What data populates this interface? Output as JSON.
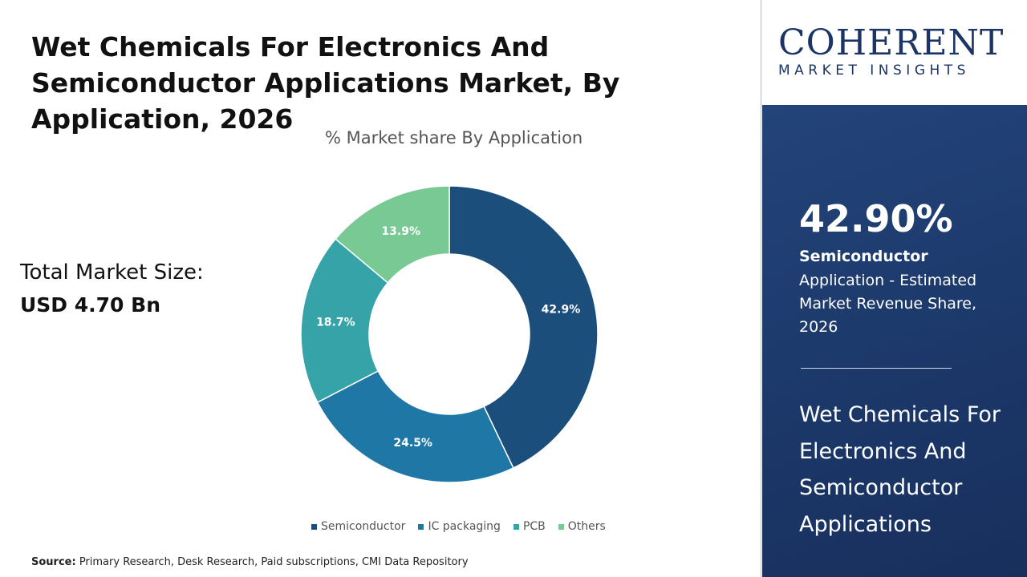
{
  "title": "Wet Chemicals For Electronics And Semiconductor Applications Market,  By Application, 2026",
  "total_market": {
    "label": "Total Market Size:",
    "value": "USD 4.70 Bn"
  },
  "source": {
    "label": "Source:",
    "text": " Primary Research, Desk Research, Paid subscriptions, CMI Data Repository"
  },
  "logo": {
    "main": "COHERENT",
    "sub": "MARKET INSIGHTS"
  },
  "panel": {
    "percent": "42.90%",
    "segment": "Semiconductor",
    "description": "Application - Estimated Market Revenue Share, 2026",
    "market_name": "Wet Chemicals For Electronics And Semiconductor Applications"
  },
  "chart_data": {
    "type": "pie",
    "donut": true,
    "title": "% Market share  By Application",
    "categories": [
      "Semiconductor",
      "IC packaging",
      "PCB",
      "Others"
    ],
    "values": [
      42.9,
      24.5,
      18.7,
      13.9
    ],
    "labels": [
      "42.9%",
      "24.5%",
      "18.7%",
      "13.9%"
    ],
    "colors": [
      "#1b4e7b",
      "#1f77a5",
      "#35a3a8",
      "#79c994"
    ],
    "legend": "bottom"
  }
}
